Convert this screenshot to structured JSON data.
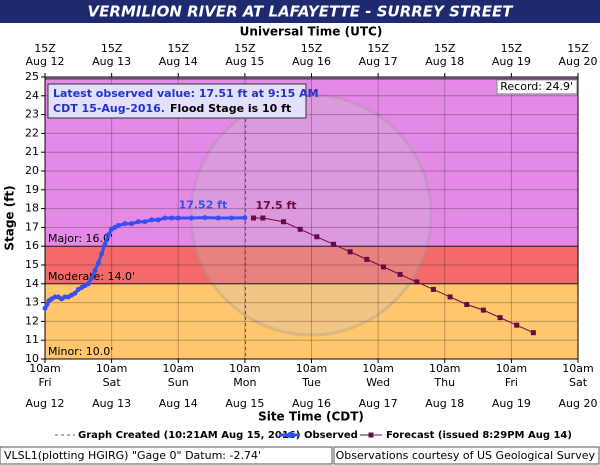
{
  "chart_data": {
    "type": "hydrograph",
    "title": "VERMILION RIVER AT LAFAYETTE - SURREY STREET",
    "x2_axis_title": "Universal Time (UTC)",
    "x_axis_title": "Site Time (CDT)",
    "y_axis_title": "Stage (ft)",
    "xlim": [
      0,
      8
    ],
    "ylim": [
      10,
      25
    ],
    "yticks": [
      10,
      11,
      12,
      13,
      14,
      15,
      16,
      17,
      18,
      19,
      20,
      21,
      22,
      23,
      24,
      25
    ],
    "xticks": [
      {
        "value": 0,
        "label": "10am"
      },
      {
        "value": 1,
        "label": "10am"
      },
      {
        "value": 2,
        "label": "10am"
      },
      {
        "value": 3,
        "label": "10am"
      },
      {
        "value": 4,
        "label": "10am"
      },
      {
        "value": 5,
        "label": "10am"
      },
      {
        "value": 6,
        "label": "10am"
      },
      {
        "value": 7,
        "label": "10am"
      },
      {
        "value": 8,
        "label": "10am"
      }
    ],
    "xtick_days": [
      "Fri",
      "Sat",
      "Sun",
      "Mon",
      "Tue",
      "Wed",
      "Thu",
      "Fri",
      "Sat"
    ],
    "xtick_dates": [
      "Aug 12",
      "Aug 13",
      "Aug 14",
      "Aug 15",
      "Aug 16",
      "Aug 17",
      "Aug 18",
      "Aug 19",
      "Aug 20"
    ],
    "x2ticks": [
      {
        "value": 0,
        "label": "15Z"
      },
      {
        "value": 1,
        "label": "15Z"
      },
      {
        "value": 2,
        "label": "15Z"
      },
      {
        "value": 3,
        "label": "15Z"
      },
      {
        "value": 4,
        "label": "15Z"
      },
      {
        "value": 5,
        "label": "15Z"
      },
      {
        "value": 6,
        "label": "15Z"
      },
      {
        "value": 7,
        "label": "15Z"
      },
      {
        "value": 8,
        "label": "15Z"
      }
    ],
    "x2tick_dates": [
      "Aug 12",
      "Aug 13",
      "Aug 14",
      "Aug 15",
      "Aug 16",
      "Aug 17",
      "Aug 18",
      "Aug 19",
      "Aug 20"
    ],
    "grid": true,
    "flood_stages": [
      {
        "value": 10,
        "label": "Minor: 10.0'",
        "color": "#ffc66e"
      },
      {
        "value": 14,
        "label": "Moderate: 14.0'",
        "color": "#f46a6a"
      },
      {
        "value": 16,
        "label": "Major: 16.0'",
        "color": "#e48ae6"
      }
    ],
    "record": {
      "value": 24.9,
      "label": "Record: 24.9'"
    },
    "info_line1": "Latest observed value: 17.51 ft at 9:15 AM",
    "info_line2a": "CDT 15-Aug-2016.",
    "info_line2b": "Flood Stage is 10 ft",
    "graph_created": {
      "x": 3.01,
      "label": "Graph Created (10:21AM Aug 15, 2016)"
    },
    "series": [
      {
        "name": "Observed",
        "color": "#3350f0",
        "annotation": "17.52 ft",
        "x": [
          0,
          0.03,
          0.06,
          0.1,
          0.15,
          0.2,
          0.25,
          0.3,
          0.35,
          0.4,
          0.45,
          0.5,
          0.55,
          0.6,
          0.65,
          0.7,
          0.75,
          0.8,
          0.85,
          0.9,
          0.95,
          1.0,
          1.05,
          1.1,
          1.2,
          1.3,
          1.4,
          1.5,
          1.6,
          1.7,
          1.8,
          1.9,
          2.0,
          2.2,
          2.4,
          2.6,
          2.8,
          3.0
        ],
        "values": [
          12.7,
          12.9,
          13.1,
          13.2,
          13.3,
          13.3,
          13.2,
          13.3,
          13.3,
          13.4,
          13.5,
          13.7,
          13.8,
          13.9,
          14.0,
          14.3,
          14.7,
          15.1,
          15.6,
          16.1,
          16.6,
          16.9,
          17.0,
          17.1,
          17.2,
          17.2,
          17.3,
          17.3,
          17.4,
          17.4,
          17.5,
          17.5,
          17.5,
          17.5,
          17.52,
          17.5,
          17.5,
          17.51
        ]
      },
      {
        "name": "Forecast (issued 8:29PM Aug 14)",
        "color": "#6a0a45",
        "annotation": "17.5 ft",
        "x": [
          3.13,
          3.27,
          3.58,
          3.83,
          4.08,
          4.33,
          4.58,
          4.83,
          5.08,
          5.33,
          5.58,
          5.83,
          6.08,
          6.33,
          6.58,
          6.83,
          7.08,
          7.33
        ],
        "values": [
          17.5,
          17.5,
          17.3,
          16.9,
          16.5,
          16.1,
          15.7,
          15.3,
          14.9,
          14.5,
          14.1,
          13.7,
          13.3,
          12.9,
          12.6,
          12.2,
          11.8,
          11.4
        ]
      }
    ],
    "footer_left": "VLSL1(plotting HGIRG) \"Gage 0\" Datum: -2.74'",
    "footer_right": "Observations courtesy of US Geological Survey"
  }
}
